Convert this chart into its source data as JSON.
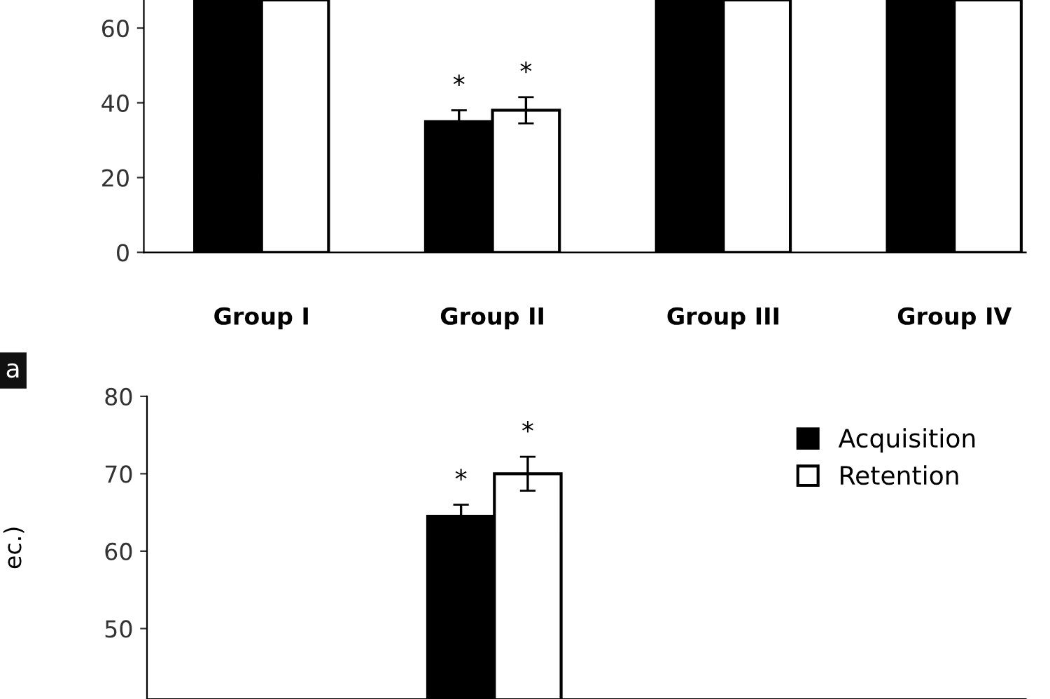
{
  "chart_data": [
    {
      "type": "bar",
      "categories": [
        "Group I",
        "Group II",
        "Group III",
        "Group IV"
      ],
      "series": [
        {
          "color": "#000000",
          "values": [
            67.5,
            35,
            67.5,
            67.5
          ],
          "errors": [
            null,
            3,
            null,
            null
          ],
          "value_labels": [
            null,
            "*",
            null,
            null
          ]
        },
        {
          "color": "#ffffff",
          "values": [
            67.5,
            38,
            67.5,
            67.5
          ],
          "errors": [
            null,
            3.5,
            null,
            null
          ],
          "value_labels": [
            null,
            "*",
            null,
            null
          ]
        }
      ],
      "ylim": [
        0,
        67.5
      ],
      "yticks": [
        0,
        20,
        40,
        60
      ],
      "grid": false,
      "legend": false,
      "annotations": [
        "a"
      ]
    },
    {
      "type": "bar",
      "categories": [
        null,
        null,
        null,
        null
      ],
      "ylabel": "ec.)",
      "series": [
        {
          "name": "Acquisition",
          "color": "#000000",
          "values": [
            null,
            64.5,
            null,
            null
          ],
          "errors": [
            null,
            1.5,
            null,
            null
          ],
          "value_labels": [
            null,
            "*",
            null,
            null
          ]
        },
        {
          "name": "Retention",
          "color": "#ffffff",
          "values": [
            null,
            70,
            null,
            null
          ],
          "errors": [
            null,
            2.2,
            null,
            null
          ],
          "value_labels": [
            null,
            "*",
            null,
            null
          ]
        }
      ],
      "ylim": [
        40.9,
        80
      ],
      "yticks": [
        50,
        60,
        70,
        80
      ],
      "grid": false,
      "legend": "top right"
    }
  ]
}
